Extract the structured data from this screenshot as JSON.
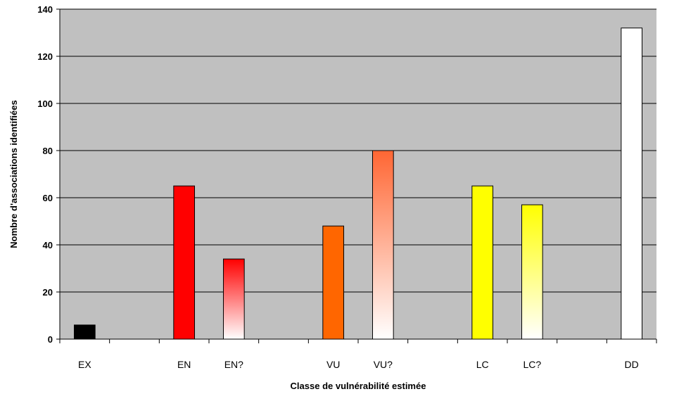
{
  "chart_data": {
    "type": "bar",
    "title": "",
    "xlabel": "Classe de vulnérabilité estimée",
    "ylabel": "Nombre d'associations identifiées",
    "ylim": [
      0,
      140
    ],
    "yticks": [
      0,
      20,
      40,
      60,
      80,
      100,
      120,
      140
    ],
    "grid": true,
    "categories": [
      "EX",
      "",
      "EN",
      "EN?",
      "",
      "VU",
      "VU?",
      "",
      "LC",
      "LC?",
      "",
      "DD"
    ],
    "values": [
      6,
      0,
      65,
      34,
      0,
      48,
      80,
      0,
      65,
      57,
      0,
      132
    ],
    "fills": [
      {
        "type": "solid",
        "color": "#000000"
      },
      null,
      {
        "type": "solid",
        "color": "#ff0000"
      },
      {
        "type": "gradient",
        "color": "#ff0000"
      },
      null,
      {
        "type": "solid",
        "color": "#ff6600"
      },
      {
        "type": "gradient",
        "color": "#ff6633"
      },
      null,
      {
        "type": "solid",
        "color": "#ffff00"
      },
      {
        "type": "gradient",
        "color": "#ffff00"
      },
      null,
      {
        "type": "solid",
        "color": "#ffffff"
      }
    ],
    "plot_background": "#c0c0c0"
  }
}
